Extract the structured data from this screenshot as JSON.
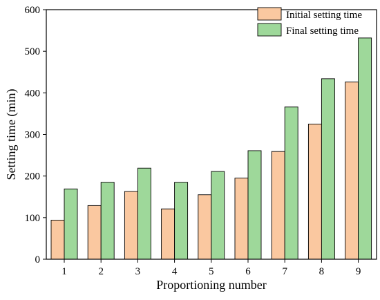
{
  "chart_data": {
    "type": "bar",
    "title": "",
    "xlabel": "Proportioning number",
    "ylabel": "Setting time (min)",
    "categories": [
      "1",
      "2",
      "3",
      "4",
      "5",
      "6",
      "7",
      "8",
      "9"
    ],
    "ylim": [
      0,
      600
    ],
    "yticks": [
      "0",
      "100",
      "200",
      "300",
      "400",
      "500",
      "600"
    ],
    "grid": false,
    "legend_position": "top-right",
    "series": [
      {
        "name": "Initial setting time",
        "color": "#FAC8A0",
        "values": [
          94,
          129,
          163,
          121,
          155,
          195,
          259,
          325,
          426
        ]
      },
      {
        "name": "Final setting time",
        "color": "#9ED89A",
        "values": [
          169,
          185,
          219,
          185,
          211,
          261,
          366,
          434,
          532
        ]
      }
    ]
  }
}
